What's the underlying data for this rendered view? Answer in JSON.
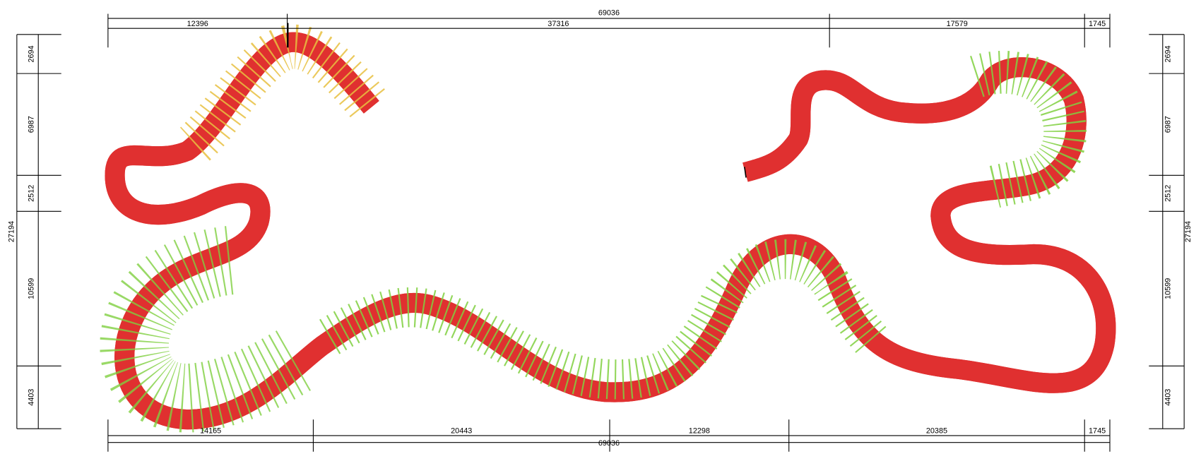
{
  "dimensions": {
    "top": {
      "overall": "69036",
      "segments": [
        "12396",
        "37316",
        "17579",
        "1745"
      ]
    },
    "bottom": {
      "overall": "69036",
      "segments": [
        "14165",
        "20443",
        "12298",
        "20385",
        "1745"
      ]
    },
    "left": {
      "overall": "27194",
      "segments": [
        "2694",
        "6987",
        "2512",
        "10599",
        "4403"
      ]
    },
    "right": {
      "overall": "27194",
      "segments": [
        "2694",
        "6987",
        "2512",
        "10599",
        "4403"
      ]
    }
  }
}
